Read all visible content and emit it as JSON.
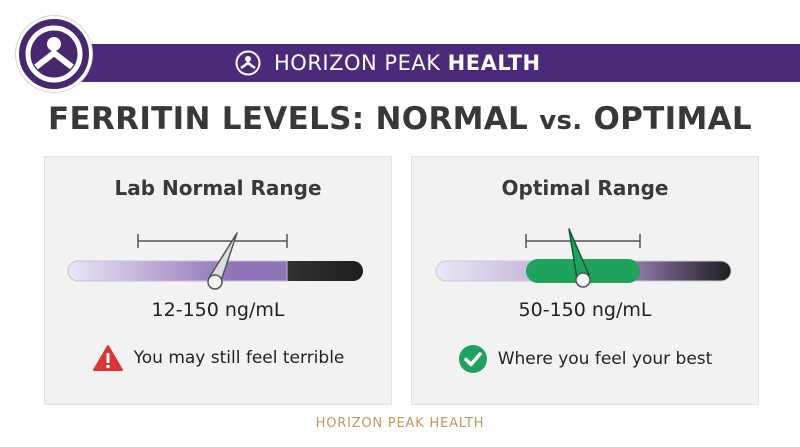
{
  "brand": {
    "name_light": "HORIZON PEAK ",
    "name_bold": "HEALTH",
    "colors": {
      "primary": "#4b2a7b",
      "accent": "#b99a5c"
    },
    "logo_icon": "person-peak-icon"
  },
  "title": {
    "main": "FERRITIN LEVELS: NORMAL ",
    "vs": "vs.",
    "tail": " OPTIMAL"
  },
  "cards": [
    {
      "title": "Lab Normal Range",
      "range_text": "12-150 ng/mL",
      "note": "You may still feel terrible",
      "note_icon": "warning-icon",
      "status_color": "#d93636",
      "highlight_color": "#8f74b8"
    },
    {
      "title": "Optimal Range",
      "range_text": "50-150 ng/mL",
      "note": "Where you feel your best",
      "note_icon": "checkmark-icon",
      "status_color": "#1ea25c",
      "highlight_color": "#1ea25c"
    }
  ],
  "footer": "HORIZON PEAK HEALTH"
}
